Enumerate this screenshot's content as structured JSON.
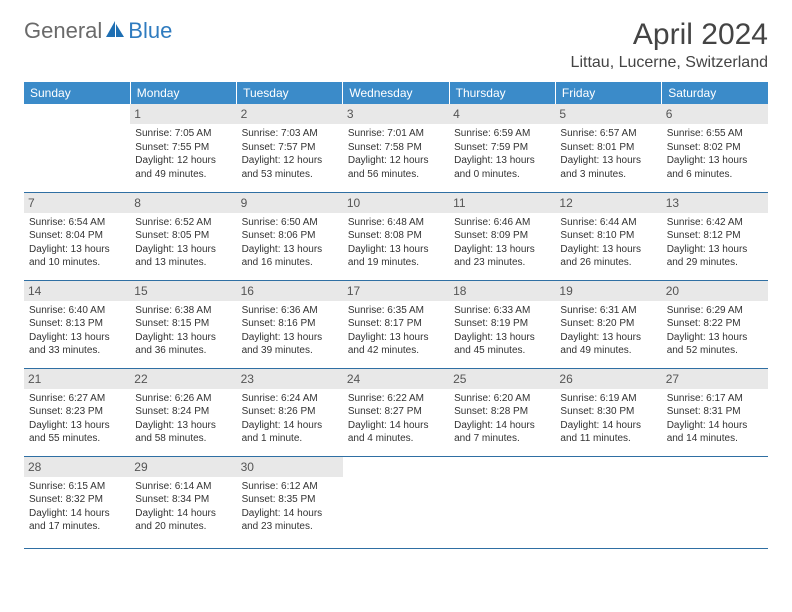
{
  "logo": {
    "part1": "General",
    "part2": "Blue"
  },
  "title": "April 2024",
  "location": "Littau, Lucerne, Switzerland",
  "colors": {
    "header_bg": "#3b8bc9",
    "header_text": "#ffffff",
    "daynum_bg": "#e8e8e8",
    "daynum_text": "#555555",
    "cell_border": "#2f6fa3",
    "body_text": "#333333",
    "logo_gray": "#6a6a6a",
    "logo_blue": "#2f7bbf",
    "title_color": "#444444",
    "background": "#ffffff"
  },
  "typography": {
    "month_title_fontsize": 30,
    "location_fontsize": 16,
    "dayheader_fontsize": 12,
    "daynum_fontsize": 12,
    "cell_fontsize": 10,
    "logo_fontsize": 22
  },
  "layout": {
    "start_day_index": 1,
    "days_in_month": 30,
    "columns": 7,
    "rows": 5
  },
  "day_headers": [
    "Sunday",
    "Monday",
    "Tuesday",
    "Wednesday",
    "Thursday",
    "Friday",
    "Saturday"
  ],
  "days": [
    {
      "n": 1,
      "sunrise": "7:05 AM",
      "sunset": "7:55 PM",
      "daylight": "12 hours and 49 minutes."
    },
    {
      "n": 2,
      "sunrise": "7:03 AM",
      "sunset": "7:57 PM",
      "daylight": "12 hours and 53 minutes."
    },
    {
      "n": 3,
      "sunrise": "7:01 AM",
      "sunset": "7:58 PM",
      "daylight": "12 hours and 56 minutes."
    },
    {
      "n": 4,
      "sunrise": "6:59 AM",
      "sunset": "7:59 PM",
      "daylight": "13 hours and 0 minutes."
    },
    {
      "n": 5,
      "sunrise": "6:57 AM",
      "sunset": "8:01 PM",
      "daylight": "13 hours and 3 minutes."
    },
    {
      "n": 6,
      "sunrise": "6:55 AM",
      "sunset": "8:02 PM",
      "daylight": "13 hours and 6 minutes."
    },
    {
      "n": 7,
      "sunrise": "6:54 AM",
      "sunset": "8:04 PM",
      "daylight": "13 hours and 10 minutes."
    },
    {
      "n": 8,
      "sunrise": "6:52 AM",
      "sunset": "8:05 PM",
      "daylight": "13 hours and 13 minutes."
    },
    {
      "n": 9,
      "sunrise": "6:50 AM",
      "sunset": "8:06 PM",
      "daylight": "13 hours and 16 minutes."
    },
    {
      "n": 10,
      "sunrise": "6:48 AM",
      "sunset": "8:08 PM",
      "daylight": "13 hours and 19 minutes."
    },
    {
      "n": 11,
      "sunrise": "6:46 AM",
      "sunset": "8:09 PM",
      "daylight": "13 hours and 23 minutes."
    },
    {
      "n": 12,
      "sunrise": "6:44 AM",
      "sunset": "8:10 PM",
      "daylight": "13 hours and 26 minutes."
    },
    {
      "n": 13,
      "sunrise": "6:42 AM",
      "sunset": "8:12 PM",
      "daylight": "13 hours and 29 minutes."
    },
    {
      "n": 14,
      "sunrise": "6:40 AM",
      "sunset": "8:13 PM",
      "daylight": "13 hours and 33 minutes."
    },
    {
      "n": 15,
      "sunrise": "6:38 AM",
      "sunset": "8:15 PM",
      "daylight": "13 hours and 36 minutes."
    },
    {
      "n": 16,
      "sunrise": "6:36 AM",
      "sunset": "8:16 PM",
      "daylight": "13 hours and 39 minutes."
    },
    {
      "n": 17,
      "sunrise": "6:35 AM",
      "sunset": "8:17 PM",
      "daylight": "13 hours and 42 minutes."
    },
    {
      "n": 18,
      "sunrise": "6:33 AM",
      "sunset": "8:19 PM",
      "daylight": "13 hours and 45 minutes."
    },
    {
      "n": 19,
      "sunrise": "6:31 AM",
      "sunset": "8:20 PM",
      "daylight": "13 hours and 49 minutes."
    },
    {
      "n": 20,
      "sunrise": "6:29 AM",
      "sunset": "8:22 PM",
      "daylight": "13 hours and 52 minutes."
    },
    {
      "n": 21,
      "sunrise": "6:27 AM",
      "sunset": "8:23 PM",
      "daylight": "13 hours and 55 minutes."
    },
    {
      "n": 22,
      "sunrise": "6:26 AM",
      "sunset": "8:24 PM",
      "daylight": "13 hours and 58 minutes."
    },
    {
      "n": 23,
      "sunrise": "6:24 AM",
      "sunset": "8:26 PM",
      "daylight": "14 hours and 1 minute."
    },
    {
      "n": 24,
      "sunrise": "6:22 AM",
      "sunset": "8:27 PM",
      "daylight": "14 hours and 4 minutes."
    },
    {
      "n": 25,
      "sunrise": "6:20 AM",
      "sunset": "8:28 PM",
      "daylight": "14 hours and 7 minutes."
    },
    {
      "n": 26,
      "sunrise": "6:19 AM",
      "sunset": "8:30 PM",
      "daylight": "14 hours and 11 minutes."
    },
    {
      "n": 27,
      "sunrise": "6:17 AM",
      "sunset": "8:31 PM",
      "daylight": "14 hours and 14 minutes."
    },
    {
      "n": 28,
      "sunrise": "6:15 AM",
      "sunset": "8:32 PM",
      "daylight": "14 hours and 17 minutes."
    },
    {
      "n": 29,
      "sunrise": "6:14 AM",
      "sunset": "8:34 PM",
      "daylight": "14 hours and 20 minutes."
    },
    {
      "n": 30,
      "sunrise": "6:12 AM",
      "sunset": "8:35 PM",
      "daylight": "14 hours and 23 minutes."
    }
  ],
  "labels": {
    "sunrise": "Sunrise:",
    "sunset": "Sunset:",
    "daylight": "Daylight:"
  }
}
